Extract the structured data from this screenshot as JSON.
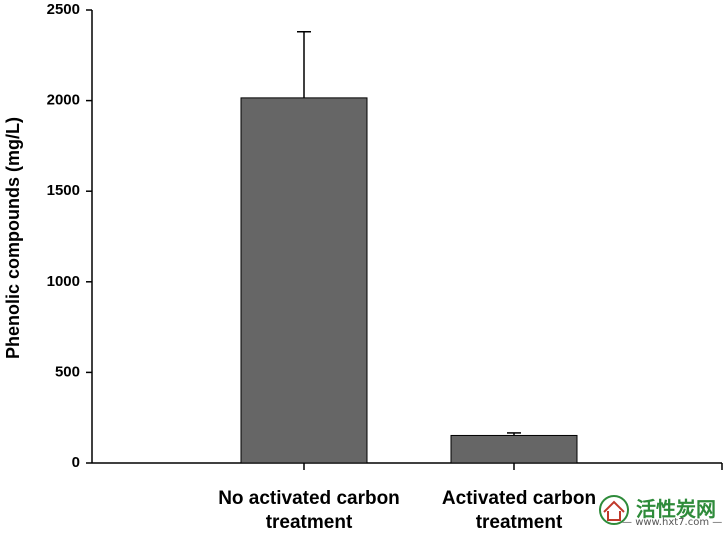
{
  "chart_data": {
    "type": "bar",
    "y_label": "Phenolic compounds (mg/L)",
    "categories": [
      "No activated carbon treatment",
      "Activated carbon treatment"
    ],
    "values": [
      2015,
      152
    ],
    "errors": [
      365,
      14
    ],
    "color": "#666666",
    "ylim": [
      0,
      2500
    ],
    "yticks": [
      0,
      500,
      1000,
      1500,
      2000,
      2500
    ],
    "watermark": {
      "name": "活性炭网",
      "url": "www.hxt7.com"
    }
  }
}
